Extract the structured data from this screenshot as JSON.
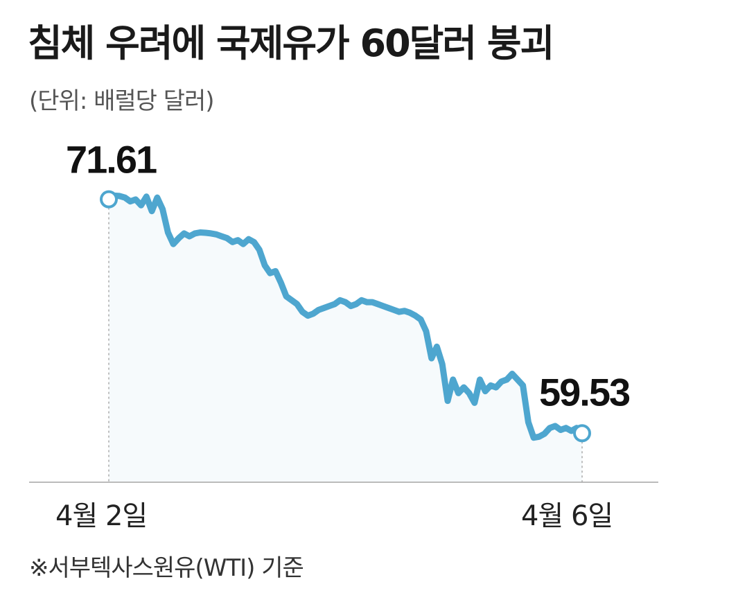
{
  "chart_data": {
    "type": "line",
    "title": "침체 우려에 국제유가 60달러 붕괴",
    "unit": "(단위: 배럴당 달러)",
    "source": "※서부텍사스원유(WTI) 기준",
    "x_labels": [
      "4월 2일",
      "4월 6일"
    ],
    "start_label": "71.61",
    "end_label": "59.53",
    "series": [
      {
        "color": "#4ea6cf",
        "values": [
          71.61,
          71.8,
          71.78,
          71.7,
          71.5,
          71.6,
          71.3,
          71.75,
          71.0,
          71.7,
          71.1,
          69.9,
          69.3,
          69.6,
          69.85,
          69.7,
          69.85,
          69.9,
          69.88,
          69.85,
          69.8,
          69.7,
          69.6,
          69.4,
          69.5,
          69.3,
          69.55,
          69.4,
          69.0,
          68.2,
          67.8,
          67.9,
          67.3,
          66.6,
          66.4,
          66.2,
          65.8,
          65.6,
          65.7,
          65.9,
          66.0,
          66.1,
          66.2,
          66.4,
          66.3,
          66.1,
          66.2,
          66.4,
          66.3,
          66.3,
          66.2,
          66.1,
          66.0,
          65.9,
          65.8,
          65.85,
          65.75,
          65.6,
          65.4,
          64.8,
          63.4,
          64.0,
          63.1,
          61.2,
          62.3,
          61.6,
          61.9,
          61.6,
          61.1,
          62.3,
          61.7,
          62.0,
          61.9,
          62.2,
          62.3,
          62.6,
          62.3,
          62.0,
          60.1,
          59.3,
          59.35,
          59.5,
          59.8,
          59.9,
          59.7,
          59.8,
          59.65,
          59.8,
          59.53
        ]
      }
    ],
    "ylim": [
      57.0,
      72.6
    ],
    "grid": false,
    "baseline_color": "#bbbbbb",
    "fill_color": "#f6fafc"
  }
}
